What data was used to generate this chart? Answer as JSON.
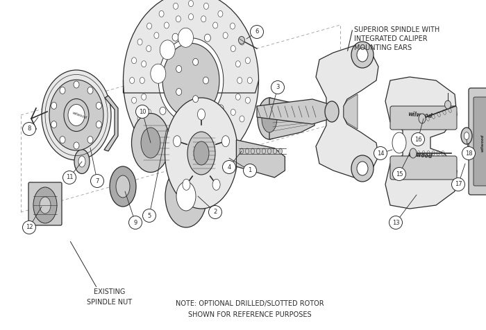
{
  "bg_color": "#ffffff",
  "line_color": "#2a2a2a",
  "fill_light": "#e8e8e8",
  "fill_mid": "#cccccc",
  "fill_dark": "#aaaaaa",
  "fill_white": "#ffffff",
  "lw": 0.9,
  "figsize": [
    7.0,
    4.76
  ],
  "dpi": 100,
  "spindle_note": "SUPERIOR SPINDLE WITH\nINTEGRATED CALIPER\nMOUNTING EARS",
  "note_text_line1": "NOTE: OPTIONAL DRILLED/SLOTTED ROTOR",
  "note_text_line2": "SHOWN FOR REFERENCE PURPOSES",
  "existing_note_line1": "EXISTING",
  "existing_note_line2": "SPINDLE NUT"
}
